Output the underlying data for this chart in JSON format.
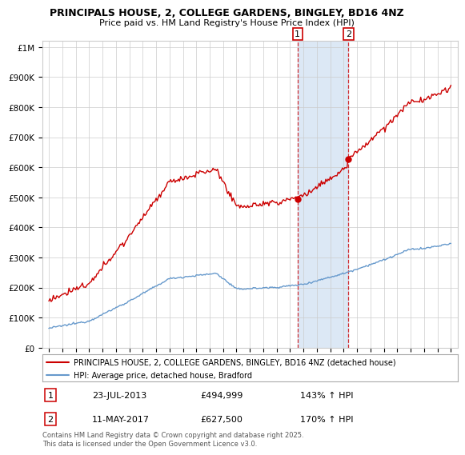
{
  "title": "PRINCIPALS HOUSE, 2, COLLEGE GARDENS, BINGLEY, BD16 4NZ",
  "subtitle": "Price paid vs. HM Land Registry's House Price Index (HPI)",
  "legend_line1": "PRINCIPALS HOUSE, 2, COLLEGE GARDENS, BINGLEY, BD16 4NZ (detached house)",
  "legend_line2": "HPI: Average price, detached house, Bradford",
  "transaction1_date": "23-JUL-2013",
  "transaction1_price": "£494,999",
  "transaction1_hpi": "143% ↑ HPI",
  "transaction2_date": "11-MAY-2017",
  "transaction2_price": "£627,500",
  "transaction2_hpi": "170% ↑ HPI",
  "footer": "Contains HM Land Registry data © Crown copyright and database right 2025.\nThis data is licensed under the Open Government Licence v3.0.",
  "hpi_color": "#6699cc",
  "price_color": "#cc0000",
  "shaded_color": "#dce8f5",
  "ylabel_ticks": [
    "£0",
    "£100K",
    "£200K",
    "£300K",
    "£400K",
    "£500K",
    "£600K",
    "£700K",
    "£800K",
    "£900K",
    "£1M"
  ],
  "background_color": "#ffffff",
  "grid_color": "#cccccc"
}
